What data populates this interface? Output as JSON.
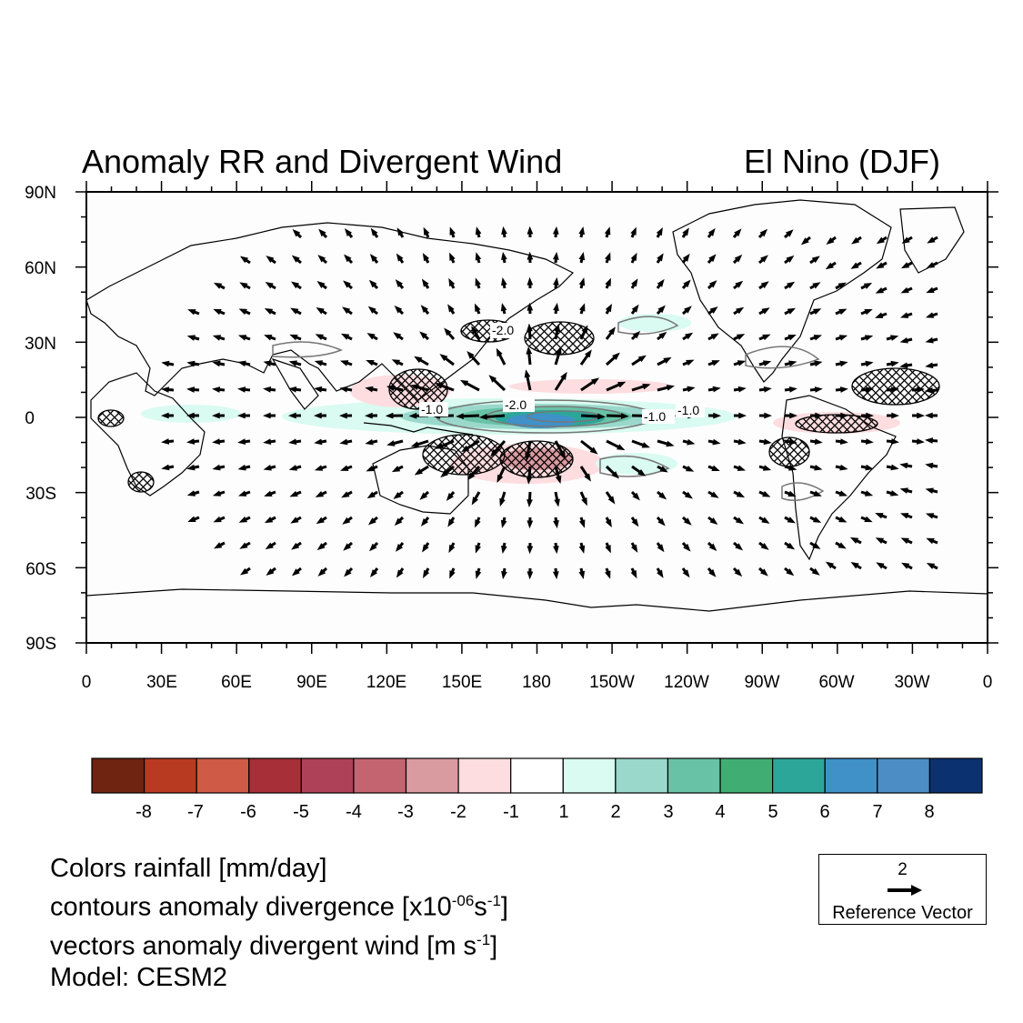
{
  "title_left": "Anomaly RR and Divergent Wind",
  "title_right": "El Nino  (DJF)",
  "map": {
    "lat_labels": [
      "90N",
      "60N",
      "30N",
      "0",
      "30S",
      "60S",
      "90S"
    ],
    "lon_labels": [
      "0",
      "30E",
      "60E",
      "90E",
      "120E",
      "150E",
      "180",
      "150W",
      "120W",
      "90W",
      "60W",
      "30W",
      "0"
    ],
    "contour_labels": [
      "-2.0",
      "-1.0",
      "-2.0",
      "-1.0",
      "-1.0"
    ]
  },
  "colorbar": {
    "colors": [
      "#6e2410",
      "#b83a21",
      "#cf5a45",
      "#a72f37",
      "#ae4058",
      "#c46470",
      "#d99aa0",
      "#fddde0",
      "#ffffff",
      "#d9fbf1",
      "#9ad8cb",
      "#68c2a5",
      "#40ae72",
      "#2da69a",
      "#3f91c8",
      "#4c8dc6",
      "#0b3170"
    ],
    "tick_labels": [
      "-8",
      "-7",
      "-6",
      "-5",
      "-4",
      "-3",
      "-2",
      "-1",
      "1",
      "2",
      "3",
      "4",
      "5",
      "6",
      "7",
      "8"
    ]
  },
  "notes": {
    "line1": "Colors rainfall [mm/day]",
    "line2_prefix": "contours anomaly divergence  [x10",
    "line2_exp": "-06",
    "line2_unit": "s",
    "line2_unit_exp": "-1",
    "line2_suffix": "]",
    "line3_prefix": "vectors anomaly divergent wind [m s",
    "line3_exp": "-1",
    "line3_suffix": "]",
    "line4": "Model: CESM2"
  },
  "reference_vector": {
    "value": "2",
    "label": "Reference Vector"
  }
}
